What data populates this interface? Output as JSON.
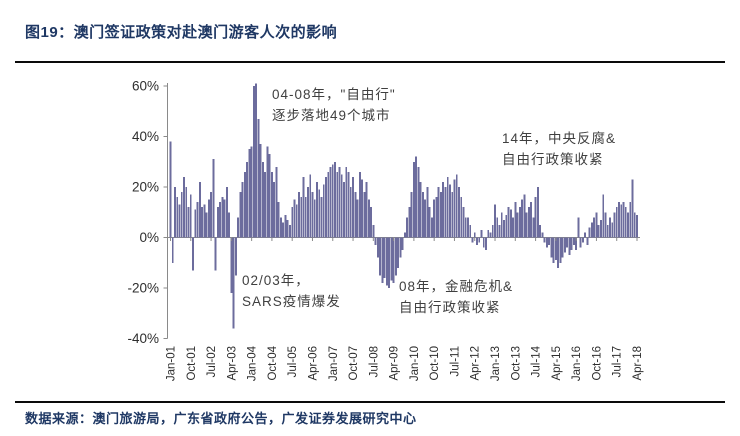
{
  "title": "图19：澳门签证政策对赴澳门游客人次的影响",
  "source": "数据来源：澳门旅游局，广东省政府公告，广发证券发展研究中心",
  "colors": {
    "bar": "#6C6C9D",
    "title_text": "#1F3864",
    "axis": "#8a8a8a",
    "annotation_text": "#3F3F3F",
    "rule": "#0a0a0a"
  },
  "annotations": [
    {
      "id": "free-travel-rollout",
      "lines": [
        "04-08年，\"自由行\"",
        "逐步落地49个城市"
      ]
    },
    {
      "id": "anticorruption-tightening",
      "lines": [
        "14年，中央反腐&",
        "自由行政策收紧"
      ]
    },
    {
      "id": "sars-outbreak",
      "lines": [
        "02/03年，",
        "SARS疫情爆发"
      ]
    },
    {
      "id": "financial-crisis",
      "lines": [
        "08年，金融危机&",
        "自由行政策收紧"
      ]
    }
  ],
  "chart_data": {
    "type": "bar",
    "title": "澳门游客人次同比增速（%）",
    "xlabel": "",
    "ylabel": "",
    "unit": "%",
    "frequency": "monthly",
    "x_start": "Jan-01",
    "x_end": "Apr-18",
    "ylim": [
      -40,
      60
    ],
    "grid": false,
    "legend": "none",
    "yticks": [
      60,
      40,
      20,
      0,
      -20,
      -40
    ],
    "ytick_labels": [
      "60%",
      "40%",
      "20%",
      "0%",
      "-20%",
      "-40%"
    ],
    "x_tick_every": 9,
    "x_tick_labels": [
      "Jan-01",
      "Oct-01",
      "Jul-02",
      "Apr-03",
      "Jan-04",
      "Oct-04",
      "Jul-05",
      "Apr-06",
      "Jan-07",
      "Oct-07",
      "Jul-08",
      "Apr-09",
      "Jan-10",
      "Oct-10",
      "Jul-11",
      "Apr-12",
      "Jan-13",
      "Oct-13",
      "Jul-14",
      "Apr-15",
      "Jan-16",
      "Oct-16",
      "Jul-17",
      "Apr-18"
    ],
    "values": [
      38,
      -10,
      20,
      16,
      13,
      18,
      24,
      20,
      12,
      17,
      -13,
      11,
      14,
      22,
      12,
      13,
      10,
      15,
      18,
      31,
      -13,
      12,
      14,
      16,
      15,
      20,
      10,
      -22,
      -36,
      -15,
      8,
      18,
      22,
      26,
      30,
      35,
      36,
      60,
      61,
      47,
      37,
      30,
      26,
      36,
      33,
      26,
      22,
      28,
      14,
      8,
      6,
      9,
      7,
      5,
      12,
      15,
      13,
      18,
      16,
      24,
      16,
      20,
      25,
      18,
      15,
      22,
      19,
      16,
      21,
      24,
      26,
      28,
      29,
      30,
      26,
      28,
      25,
      22,
      28,
      26,
      20,
      24,
      18,
      15,
      26,
      23,
      18,
      22,
      15,
      12,
      5,
      -3,
      -8,
      -15,
      -18,
      -16,
      -19,
      -20,
      -17,
      -18,
      -15,
      -12,
      -8,
      -5,
      2,
      8,
      12,
      18,
      30,
      32,
      28,
      22,
      18,
      15,
      20,
      12,
      8,
      15,
      16,
      20,
      18,
      22,
      20,
      24,
      21,
      18,
      23,
      25,
      20,
      16,
      12,
      8,
      8,
      5,
      -2,
      2,
      -3,
      -2,
      3,
      -4,
      -5,
      3,
      2,
      5,
      13,
      8,
      5,
      10,
      7,
      9,
      12,
      11,
      8,
      14,
      10,
      12,
      15,
      17,
      10,
      12,
      14,
      8,
      16,
      20,
      5,
      2,
      -2,
      -4,
      -3,
      -8,
      -10,
      -9,
      -12,
      -10,
      -8,
      -6,
      -4,
      -7,
      -5,
      -3,
      -5,
      8,
      -4,
      -2,
      2,
      -3,
      4,
      6,
      8,
      10,
      5,
      7,
      17,
      10,
      5,
      8,
      6,
      10,
      12,
      14,
      13,
      14,
      12,
      10,
      14,
      23,
      10,
      9
    ]
  }
}
